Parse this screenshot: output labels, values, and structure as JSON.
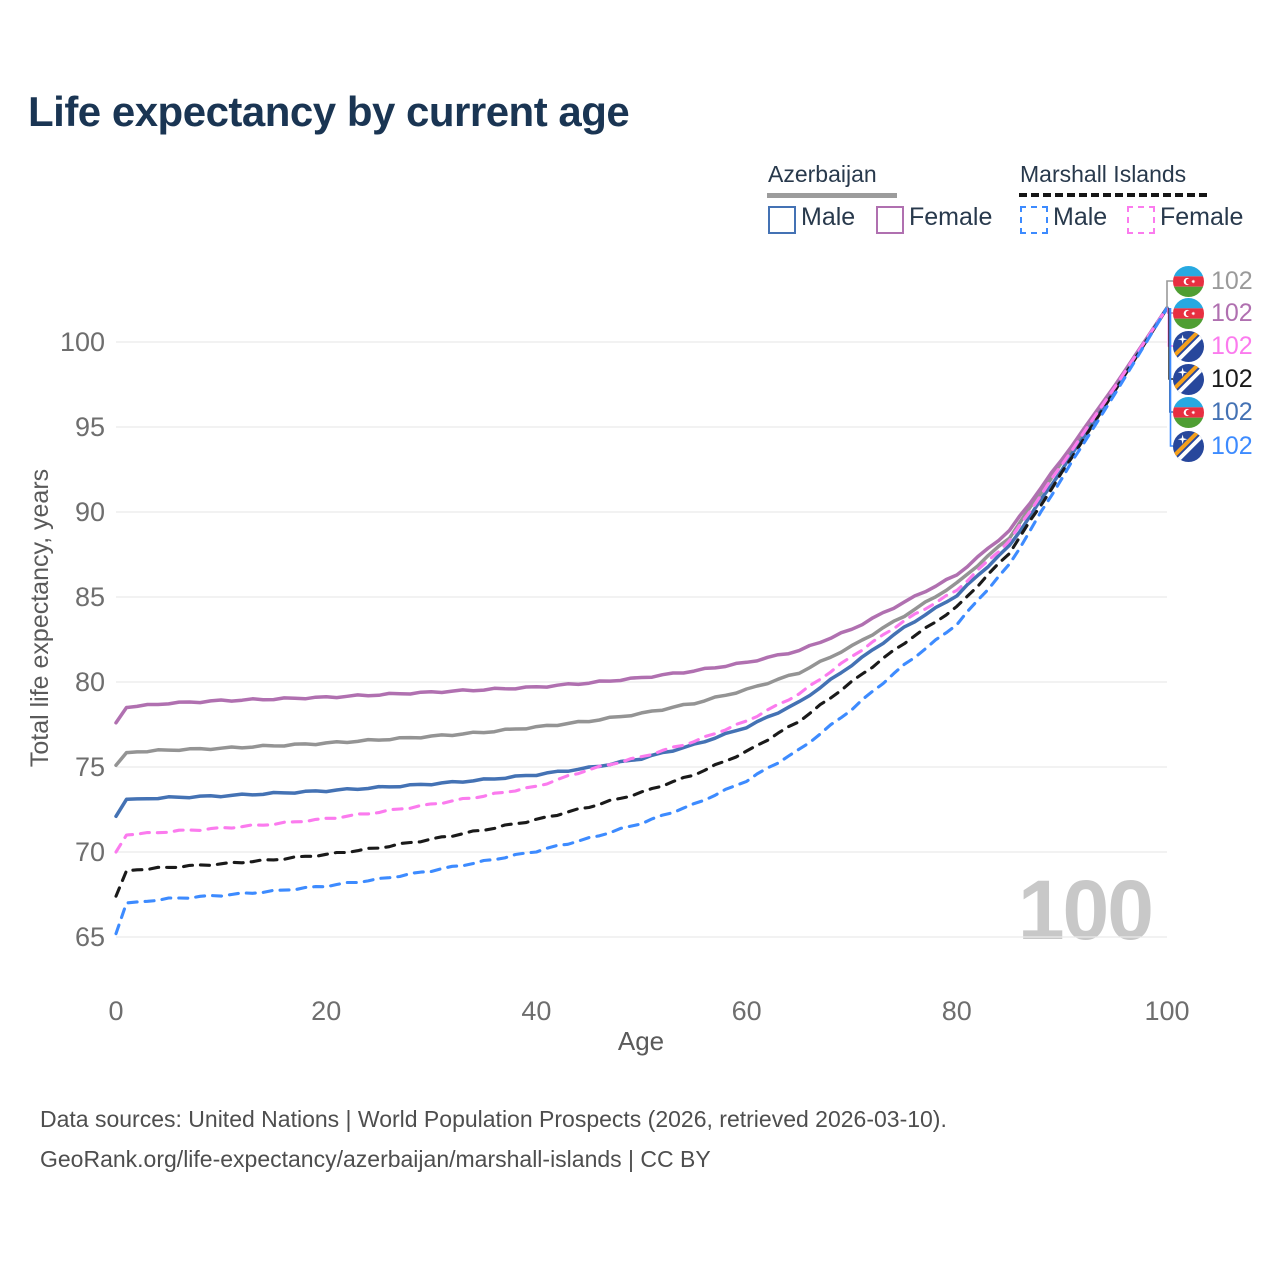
{
  "title": "Life expectancy by current age",
  "legend": {
    "groups": [
      {
        "label": "Azerbaijan",
        "line_style": "solid",
        "underline_color": "#9c9c9c",
        "items": [
          {
            "label": "Male",
            "color": "#4472b4",
            "dashed": false
          },
          {
            "label": "Female",
            "color": "#b070b0",
            "dashed": false
          }
        ]
      },
      {
        "label": "Marshall Islands",
        "line_style": "dashed",
        "underline_color": "#161616",
        "items": [
          {
            "label": "Male",
            "color": "#3d8bff",
            "dashed": true
          },
          {
            "label": "Female",
            "color": "#fb7bee",
            "dashed": true
          }
        ]
      }
    ]
  },
  "chart_data": {
    "type": "line",
    "title": "Life expectancy by current age",
    "xlabel": "Age",
    "ylabel": "Total life expectancy, years",
    "xlim": [
      0,
      100
    ],
    "ylim": [
      63.5,
      103.5
    ],
    "xticks": [
      0,
      20,
      40,
      60,
      80,
      100
    ],
    "yticks": [
      65,
      70,
      75,
      80,
      85,
      90,
      95,
      100
    ],
    "grid": "horizontal-only",
    "legend_position": "top-right",
    "x": [
      0,
      1,
      5,
      10,
      15,
      20,
      25,
      30,
      35,
      40,
      45,
      50,
      55,
      60,
      65,
      70,
      75,
      80,
      85,
      90,
      95,
      100
    ],
    "series": [
      {
        "id": "az_all",
        "name": "Azerbaijan — Both sexes",
        "country": "Azerbaijan",
        "sex": "All",
        "color": "#949494",
        "style": "solid",
        "end_value": 102,
        "values": [
          75.1,
          75.85,
          76.0,
          76.1,
          76.25,
          76.4,
          76.6,
          76.8,
          77.05,
          77.35,
          77.7,
          78.15,
          78.75,
          79.55,
          80.55,
          82.1,
          83.9,
          85.8,
          88.5,
          92.9,
          97.3,
          102
        ]
      },
      {
        "id": "az_female",
        "name": "Azerbaijan — Female",
        "country": "Azerbaijan",
        "sex": "Female",
        "color": "#b070b0",
        "style": "solid",
        "end_value": 102,
        "values": [
          77.6,
          78.5,
          78.75,
          78.9,
          79.0,
          79.1,
          79.25,
          79.4,
          79.55,
          79.7,
          79.95,
          80.25,
          80.65,
          81.15,
          81.85,
          83.1,
          84.7,
          86.3,
          88.9,
          93.1,
          97.4,
          102
        ]
      },
      {
        "id": "az_male",
        "name": "Azerbaijan — Male",
        "country": "Azerbaijan",
        "sex": "Male",
        "color": "#4472b4",
        "style": "solid",
        "end_value": 102,
        "values": [
          72.1,
          73.1,
          73.2,
          73.3,
          73.45,
          73.6,
          73.8,
          74.0,
          74.25,
          74.55,
          74.95,
          75.5,
          76.3,
          77.35,
          78.8,
          81.0,
          83.2,
          85.1,
          88.0,
          92.5,
          97.1,
          102
        ]
      },
      {
        "id": "mh_all",
        "name": "Marshall Islands — Both sexes",
        "country": "Marshall Islands",
        "sex": "All",
        "color": "#1a1a1a",
        "style": "dashed",
        "end_value": 102,
        "values": [
          67.4,
          68.9,
          69.1,
          69.3,
          69.55,
          69.85,
          70.25,
          70.75,
          71.3,
          71.9,
          72.65,
          73.5,
          74.55,
          75.9,
          77.7,
          80.0,
          82.3,
          84.4,
          87.6,
          92.3,
          97.1,
          102
        ]
      },
      {
        "id": "mh_female",
        "name": "Marshall Islands — Female",
        "country": "Marshall Islands",
        "sex": "Female",
        "color": "#fb7bee",
        "style": "dashed",
        "end_value": 102,
        "values": [
          70.0,
          71.0,
          71.2,
          71.4,
          71.65,
          71.95,
          72.35,
          72.8,
          73.3,
          73.85,
          74.85,
          75.6,
          76.5,
          77.7,
          79.3,
          81.5,
          83.6,
          85.4,
          88.3,
          92.8,
          97.3,
          102
        ]
      },
      {
        "id": "mh_male",
        "name": "Marshall Islands — Male",
        "country": "Marshall Islands",
        "sex": "Male",
        "color": "#3d8bff",
        "style": "dashed",
        "end_value": 102,
        "values": [
          65.2,
          67.0,
          67.25,
          67.45,
          67.7,
          68.0,
          68.4,
          68.9,
          69.45,
          70.05,
          70.8,
          71.7,
          72.8,
          74.2,
          76.0,
          78.4,
          81.0,
          83.4,
          86.9,
          92.0,
          96.9,
          102
        ]
      }
    ],
    "end_labels": [
      {
        "flag": "azerbaijan",
        "value": "102",
        "color": "#9a9a9a"
      },
      {
        "flag": "azerbaijan",
        "value": "102",
        "color": "#b070b0"
      },
      {
        "flag": "marshall-islands",
        "value": "102",
        "color": "#fb7bee"
      },
      {
        "flag": "marshall-islands",
        "value": "102",
        "color": "#1a1a1a"
      },
      {
        "flag": "azerbaijan",
        "value": "102",
        "color": "#4472b4"
      },
      {
        "flag": "marshall-islands",
        "value": "102",
        "color": "#3d8bff"
      }
    ],
    "watermark": "100"
  },
  "footer": {
    "line1": "Data sources: United Nations | World Population Prospects (2026, retrieved 2026-03-10).",
    "line2": "GeoRank.org/life-expectancy/azerbaijan/marshall-islands | CC BY"
  }
}
